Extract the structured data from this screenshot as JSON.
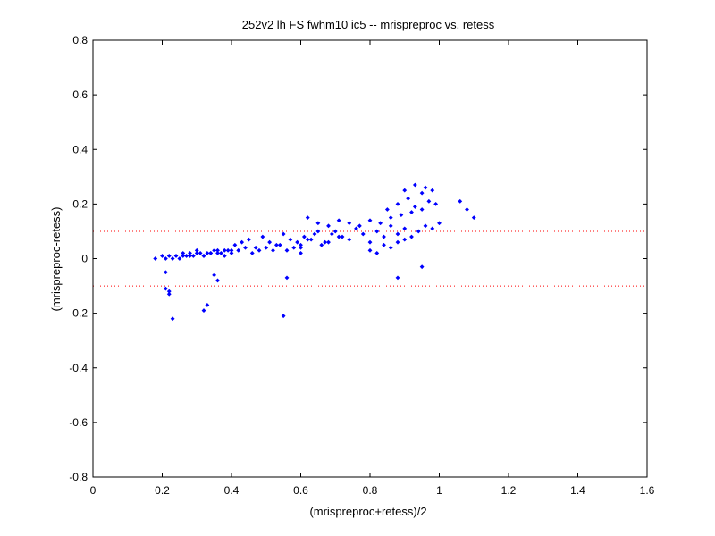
{
  "chart_data": {
    "type": "scatter",
    "title": "252v2 lh FS fwhm10 ic5 -- mrispreproc vs. retess",
    "xlabel": "(mrispreproc+retess)/2",
    "ylabel": "(mrispreproc-retess)",
    "xlim": [
      0,
      1.6
    ],
    "ylim": [
      -0.8,
      0.8
    ],
    "xticks": [
      0,
      0.2,
      0.4,
      0.6,
      0.8,
      1,
      1.2,
      1.4,
      1.6
    ],
    "xtick_labels": [
      "0",
      "0.2",
      "0.4",
      "0.6",
      "0.8",
      "1",
      "1.2",
      "1.4",
      "1.6"
    ],
    "yticks": [
      -0.8,
      -0.6,
      -0.4,
      -0.2,
      0,
      0.2,
      0.4,
      0.6,
      0.8
    ],
    "ytick_labels": [
      "-0.8",
      "-0.6",
      "-0.4",
      "-0.2",
      "0",
      "0.2",
      "0.4",
      "0.6",
      "0.8"
    ],
    "grid": false,
    "marker_color": "#0000ff",
    "reference_lines": [
      {
        "y": 0.1,
        "style": "dotted",
        "color": "#ff0000"
      },
      {
        "y": -0.1,
        "style": "dotted",
        "color": "#ff0000"
      }
    ],
    "series": [
      {
        "marker": "diamond",
        "x": [
          0.18,
          0.2,
          0.21,
          0.22,
          0.23,
          0.24,
          0.25,
          0.26,
          0.27,
          0.28,
          0.29,
          0.3,
          0.31,
          0.32,
          0.33,
          0.34,
          0.35,
          0.36,
          0.37,
          0.38,
          0.39,
          0.4,
          0.26,
          0.28,
          0.3,
          0.32,
          0.34,
          0.36,
          0.38,
          0.4,
          0.42,
          0.44,
          0.46,
          0.48,
          0.5,
          0.52,
          0.54,
          0.56,
          0.58,
          0.6,
          0.41,
          0.43,
          0.45,
          0.47,
          0.49,
          0.51,
          0.53,
          0.55,
          0.57,
          0.59,
          0.61,
          0.63,
          0.65,
          0.67,
          0.69,
          0.71,
          0.6,
          0.62,
          0.64,
          0.66,
          0.68,
          0.7,
          0.72,
          0.74,
          0.76,
          0.78,
          0.8,
          0.82,
          0.84,
          0.86,
          0.88,
          0.9,
          0.62,
          0.65,
          0.68,
          0.71,
          0.74,
          0.77,
          0.8,
          0.83,
          0.86,
          0.89,
          0.92,
          0.95,
          0.8,
          0.82,
          0.84,
          0.86,
          0.88,
          0.9,
          0.92,
          0.94,
          0.96,
          0.98,
          1.0,
          0.85,
          0.88,
          0.91,
          0.93,
          0.95,
          0.97,
          0.99,
          0.9,
          0.93,
          0.96,
          0.98,
          1.06,
          1.08,
          1.1,
          0.21,
          0.22,
          0.23,
          0.32,
          0.33,
          0.35,
          0.36,
          0.55,
          0.56,
          0.21,
          0.22,
          0.6,
          0.88,
          0.95
        ],
        "y": [
          0.0,
          0.01,
          0.0,
          0.01,
          0.0,
          0.01,
          0.0,
          0.01,
          0.01,
          0.02,
          0.01,
          0.02,
          0.02,
          0.01,
          0.02,
          0.02,
          0.03,
          0.02,
          0.02,
          0.03,
          0.03,
          0.03,
          0.02,
          0.01,
          0.03,
          0.01,
          0.02,
          0.03,
          0.01,
          0.02,
          0.03,
          0.04,
          0.02,
          0.03,
          0.04,
          0.03,
          0.05,
          0.03,
          0.04,
          0.05,
          0.05,
          0.06,
          0.07,
          0.04,
          0.08,
          0.06,
          0.05,
          0.09,
          0.07,
          0.06,
          0.08,
          0.07,
          0.1,
          0.06,
          0.09,
          0.08,
          0.04,
          0.07,
          0.09,
          0.05,
          0.06,
          0.1,
          0.08,
          0.07,
          0.11,
          0.09,
          0.06,
          0.1,
          0.08,
          0.12,
          0.09,
          0.11,
          0.15,
          0.13,
          0.12,
          0.14,
          0.13,
          0.12,
          0.14,
          0.13,
          0.15,
          0.16,
          0.17,
          0.18,
          0.03,
          0.02,
          0.05,
          0.04,
          0.06,
          0.07,
          0.08,
          0.1,
          0.12,
          0.11,
          0.13,
          0.18,
          0.2,
          0.22,
          0.19,
          0.24,
          0.21,
          0.2,
          0.25,
          0.27,
          0.26,
          0.25,
          0.21,
          0.18,
          0.15,
          -0.05,
          -0.12,
          -0.22,
          -0.19,
          -0.17,
          -0.06,
          -0.08,
          -0.21,
          -0.07,
          -0.11,
          -0.13,
          0.02,
          -0.07,
          -0.03
        ]
      }
    ]
  }
}
